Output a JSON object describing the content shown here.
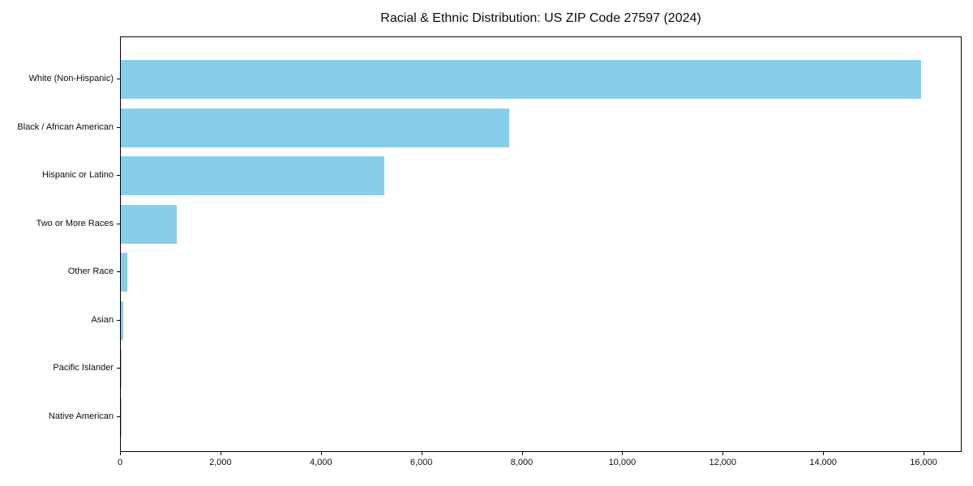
{
  "chart_data": {
    "type": "bar",
    "orientation": "horizontal",
    "title": "Racial & Ethnic Distribution: US ZIP Code 27597 (2024)",
    "categories": [
      "White (Non-Hispanic)",
      "Black / African American",
      "Hispanic or Latino",
      "Two or More Races",
      "Other Race",
      "Asian",
      "Pacific Islander",
      "Native American"
    ],
    "values": [
      15970,
      7750,
      5250,
      1115,
      130,
      55,
      15,
      8
    ],
    "xlabel": "",
    "ylabel": "",
    "xlim": [
      0,
      16758
    ],
    "xticks": [
      0,
      2000,
      4000,
      6000,
      8000,
      10000,
      12000,
      14000,
      16000
    ],
    "xtick_labels": [
      "0",
      "2,000",
      "4,000",
      "6,000",
      "8,000",
      "10,000",
      "12,000",
      "14,000",
      "16,000"
    ],
    "bar_color": "#87CEEB",
    "frame_color": "#000000",
    "grid": false,
    "legend": null
  }
}
